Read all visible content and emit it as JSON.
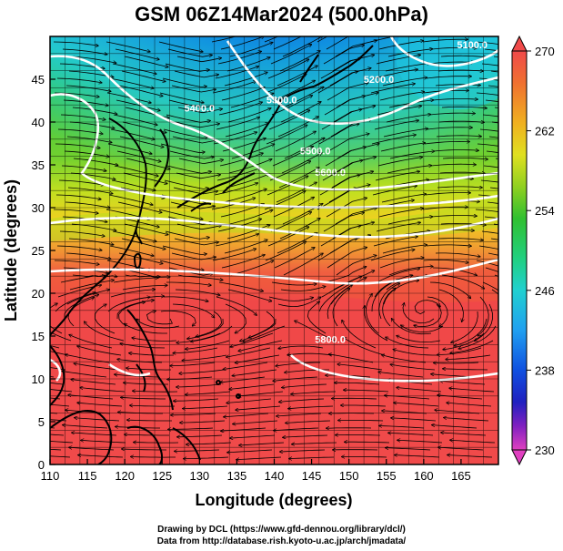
{
  "title": "GSM 06Z14Mar2024 (500.0hPa)",
  "x_axis": {
    "label": "Longitude (degrees)",
    "ticks": [
      "110",
      "115",
      "120",
      "125",
      "130",
      "135",
      "140",
      "145",
      "150",
      "155",
      "160",
      "165"
    ],
    "range": [
      110,
      170
    ]
  },
  "y_axis": {
    "label": "Latitude  (degrees)",
    "ticks": [
      "0",
      "5",
      "10",
      "15",
      "20",
      "25",
      "30",
      "35",
      "40",
      "45"
    ],
    "range": [
      0,
      50
    ]
  },
  "colorbar": {
    "ticks": [
      "270",
      "262",
      "254",
      "246",
      "238",
      "230"
    ],
    "range": [
      230,
      270
    ],
    "colors": [
      "#e040c0",
      "#8020c0",
      "#2020c0",
      "#1060e0",
      "#20a0f0",
      "#20d0d0",
      "#20d080",
      "#30c030",
      "#90d020",
      "#e0e020",
      "#f0a020",
      "#f06040",
      "#f04a4a"
    ]
  },
  "contour_labels": [
    {
      "text": "5200.0",
      "lon": 154,
      "lat": 44.6
    },
    {
      "text": "5300.0",
      "lon": 141,
      "lat": 42.2
    },
    {
      "text": "5400.0",
      "lon": 130,
      "lat": 41.2
    },
    {
      "text": "5500.0",
      "lon": 145.5,
      "lat": 36.2
    },
    {
      "text": "5600.0",
      "lon": 147.5,
      "lat": 33.7
    },
    {
      "text": "5800.0",
      "lon": 147.5,
      "lat": 14.2
    },
    {
      "text": "5100.0",
      "lon": 166.5,
      "lat": 48.6
    }
  ],
  "credits": {
    "line1": "Drawing by DCL (https://www.gfd-dennou.org/library/dcl/)",
    "line2": "Data from http://database.rish.kyoto-u.ac.jp/arch/jmadata/"
  }
}
